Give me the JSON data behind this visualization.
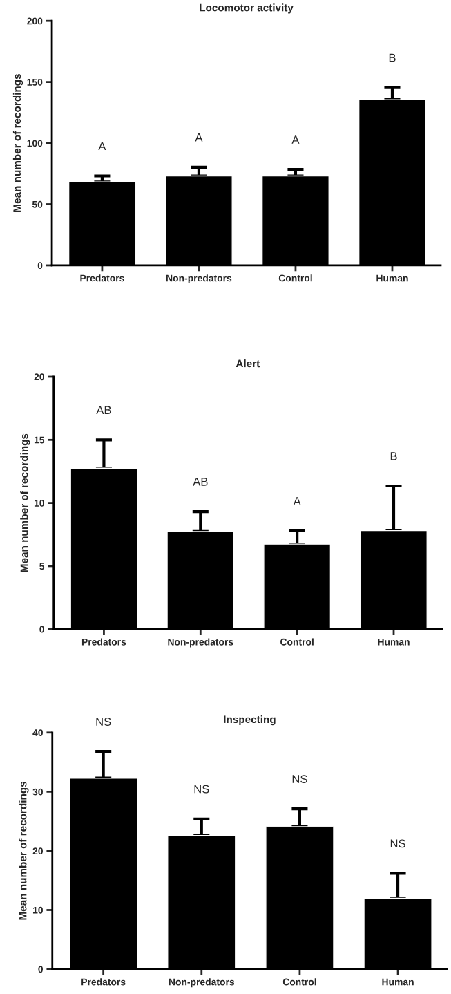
{
  "chart_data": [
    {
      "type": "bar",
      "title": "Locomotor activity",
      "ylabel": "Mean number of recordings",
      "categories": [
        "Predators",
        "Non-predators",
        "Control",
        "Human"
      ],
      "values": [
        68.2,
        73.2,
        73.2,
        135.6
      ],
      "errors": [
        [
          68.2,
          73.2
        ],
        [
          73.2,
          80.3
        ],
        [
          73.2,
          78.5
        ],
        [
          135.6,
          145.5
        ]
      ],
      "color": "#000000",
      "ylim": [
        0,
        200
      ],
      "yticks": [
        0,
        50,
        100,
        150,
        200
      ],
      "grid": false,
      "annotations": [
        "A",
        "A",
        "A",
        "B"
      ]
    },
    {
      "type": "bar",
      "title": "Alert",
      "ylabel": "Mean number of recordings",
      "categories": [
        "Predators",
        "Non-predators",
        "Control",
        "Human"
      ],
      "values": [
        12.76,
        7.74,
        6.74,
        7.81
      ],
      "errors": [
        [
          12.76,
          15.0
        ],
        [
          7.74,
          9.32
        ],
        [
          6.74,
          7.79
        ],
        [
          7.81,
          11.35
        ]
      ],
      "color": "#000000",
      "ylim": [
        0,
        20
      ],
      "yticks": [
        0,
        5,
        10,
        15,
        20
      ],
      "grid": false,
      "annotations": [
        "AB",
        "AB",
        "A",
        "B"
      ]
    },
    {
      "type": "bar",
      "title": "Inspecting",
      "ylabel": "Mean number of recordings",
      "categories": [
        "Predators",
        "Non-predators",
        "Control",
        "Human"
      ],
      "values": [
        32.3,
        22.6,
        24.1,
        12.0
      ],
      "errors": [
        [
          32.3,
          36.8
        ],
        [
          22.6,
          25.4
        ],
        [
          24.1,
          27.1
        ],
        [
          12.0,
          16.2
        ]
      ],
      "color": "#000000",
      "ylim": [
        0,
        40
      ],
      "yticks": [
        0,
        10,
        20,
        30,
        40
      ],
      "grid": false,
      "annotations": [
        "NS",
        "NS",
        "NS",
        "NS"
      ]
    }
  ]
}
